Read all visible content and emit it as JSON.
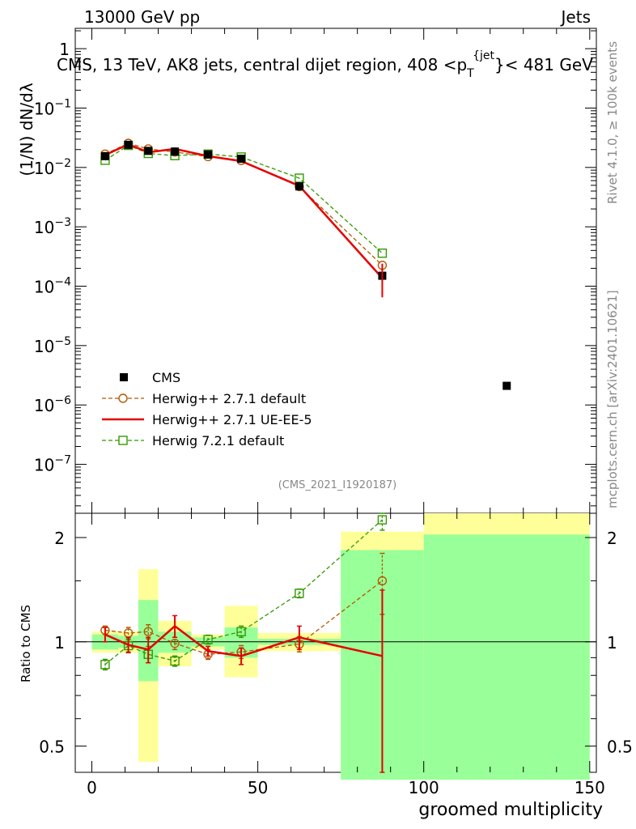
{
  "header": {
    "left": "13000 GeV pp",
    "right": "Jets"
  },
  "plot_title": "CMS, 13 TeV, AK8 jets, central dijet region, 408 <p_T^{jet}< 481 GeV",
  "side_labels": {
    "rivet": "Rivet 4.1.0, ≥ 100k events",
    "mcplots": "mcplots.cern.ch [arXiv:2401.10621]"
  },
  "analysis_id": "(CMS_2021_I1920187)",
  "legend": [
    {
      "name": "CMS",
      "style": "data"
    },
    {
      "name": "Herwig++ 2.7.1 default",
      "style": "circle"
    },
    {
      "name": "Herwig++ 2.7.1 UE-EE-5",
      "style": "line"
    },
    {
      "name": "Herwig 7.2.1 default",
      "style": "square"
    }
  ],
  "colors": {
    "data": "#000000",
    "herwigpp_default": "#b35900",
    "herwigpp_ueee5": "#e60000",
    "herwig7_default": "#339900",
    "band_inner": "#99ff99",
    "band_outer": "#ffff99"
  },
  "chart_data": [
    {
      "type": "scatter",
      "panel": "main",
      "title": "CMS, 13 TeV, AK8 jets, central dijet region, 408 <p_T^{jet}< 481 GeV",
      "ylabel": "(1/N) dN/dλ",
      "xscale": "linear",
      "yscale": "log",
      "xlim": [
        -5,
        152
      ],
      "ylim": [
        1.5e-08,
        2.2
      ],
      "y_ticks": [
        "1",
        "10^{-1}",
        "10^{-2}",
        "10^{-3}",
        "10^{-4}",
        "10^{-5}",
        "10^{-6}",
        "10^{-7}"
      ],
      "bins": [
        [
          0,
          8
        ],
        [
          8,
          14
        ],
        [
          14,
          20
        ],
        [
          20,
          30
        ],
        [
          30,
          40
        ],
        [
          40,
          50
        ],
        [
          50,
          75
        ],
        [
          75,
          100
        ],
        [
          100,
          150
        ]
      ],
      "series": [
        {
          "name": "CMS",
          "x": [
            4,
            11,
            17,
            25,
            35,
            45,
            62.5,
            87.5,
            125
          ],
          "y": [
            0.0155,
            0.024,
            0.019,
            0.0185,
            0.0165,
            0.014,
            0.0048,
            0.00015,
            2.1e-06
          ]
        },
        {
          "name": "Herwig++ 2.7.1 default",
          "x": [
            4,
            11,
            17,
            25,
            35,
            45,
            62.5,
            87.5
          ],
          "y": [
            0.0168,
            0.0255,
            0.0205,
            0.0182,
            0.0152,
            0.0131,
            0.00475,
            0.000225
          ]
        },
        {
          "name": "Herwig++ 2.7.1 UE-EE-5",
          "x": [
            4,
            11,
            17,
            25,
            35,
            45,
            62.5,
            87.5
          ],
          "y": [
            0.0162,
            0.0245,
            0.018,
            0.0205,
            0.0155,
            0.0128,
            0.0049,
            0.000137
          ]
        },
        {
          "name": "Herwig 7.2.1 default",
          "x": [
            4,
            11,
            17,
            25,
            35,
            45,
            62.5,
            87.5
          ],
          "y": [
            0.0132,
            0.0235,
            0.0172,
            0.0158,
            0.0168,
            0.015,
            0.0066,
            0.00036
          ]
        }
      ]
    },
    {
      "type": "scatter",
      "panel": "ratio",
      "xlabel": "groomed multiplicity",
      "ylabel": "Ratio to CMS",
      "xscale": "linear",
      "yscale": "log",
      "xlim": [
        -5,
        152
      ],
      "ylim": [
        0.42,
        2.35
      ],
      "x_ticks": [
        0,
        50,
        100,
        150
      ],
      "y_ticks": [
        0.5,
        1,
        2
      ],
      "bands": {
        "bins": [
          [
            0,
            8
          ],
          [
            8,
            14
          ],
          [
            14,
            20
          ],
          [
            20,
            30
          ],
          [
            30,
            40
          ],
          [
            40,
            50
          ],
          [
            50,
            75
          ],
          [
            75,
            100
          ],
          [
            100,
            150
          ]
        ],
        "inner": [
          [
            0.95,
            1.05
          ],
          [
            0.96,
            1.04
          ],
          [
            0.77,
            1.32
          ],
          [
            0.93,
            1.07
          ],
          [
            0.97,
            1.03
          ],
          [
            0.9,
            1.1
          ],
          [
            0.98,
            1.02
          ],
          [
            0.4,
            1.84
          ],
          [
            0.4,
            2.04
          ]
        ],
        "outer": [
          [
            0.93,
            1.07
          ],
          [
            0.93,
            1.07
          ],
          [
            0.45,
            1.62
          ],
          [
            0.85,
            1.15
          ],
          [
            0.95,
            1.05
          ],
          [
            0.79,
            1.27
          ],
          [
            0.94,
            1.06
          ],
          [
            0.42,
            2.08
          ],
          [
            0.42,
            2.35
          ]
        ]
      },
      "series": [
        {
          "name": "Herwig++ 2.7.1 default",
          "x": [
            4,
            11,
            17,
            25,
            35,
            45,
            62.5,
            87.5
          ],
          "y": [
            1.08,
            1.06,
            1.07,
            0.99,
            0.92,
            0.935,
            0.985,
            1.5
          ],
          "err": [
            0.03,
            0.04,
            0.05,
            0.04,
            0.03,
            0.04,
            0.05,
            0.3
          ]
        },
        {
          "name": "Herwig++ 2.7.1 UE-EE-5",
          "x": [
            4,
            11,
            17,
            25,
            35,
            45,
            62.5,
            87.5
          ],
          "y": [
            1.05,
            0.98,
            0.95,
            1.11,
            0.94,
            0.91,
            1.03,
            0.91
          ],
          "err": [
            0.05,
            0.05,
            0.08,
            0.08,
            0.03,
            0.05,
            0.08,
            0.5
          ]
        },
        {
          "name": "Herwig 7.2.1 default",
          "x": [
            4,
            11,
            17,
            25,
            35,
            45,
            62.5,
            87.5
          ],
          "y": [
            0.86,
            0.975,
            0.92,
            0.88,
            1.015,
            1.07,
            1.38,
            2.25
          ],
          "err": [
            0.03,
            0.04,
            0.05,
            0.03,
            0.03,
            0.04,
            0.04,
            0.15
          ]
        }
      ]
    }
  ]
}
